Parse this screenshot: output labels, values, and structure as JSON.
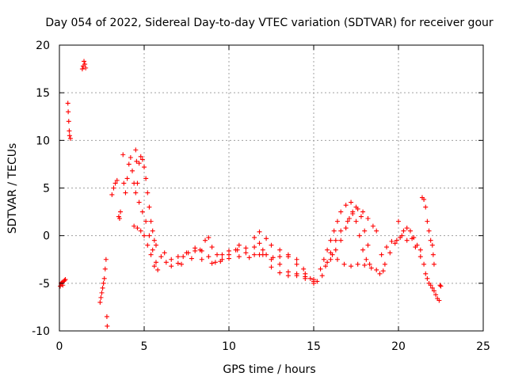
{
  "chart_data": {
    "type": "scatter",
    "title": "Day 054 of 2022, Sidereal Day-to-day VTEC variation (SDTVAR) for receiver gour",
    "xlabel": "GPS time / hours",
    "ylabel": "SDTVAR / TECUs",
    "xlim": [
      0,
      25
    ],
    "ylim": [
      -10,
      20
    ],
    "xticks": [
      "0",
      "5",
      "10",
      "15",
      "20",
      "25"
    ],
    "yticks": [
      "-10",
      "-5",
      "0",
      "5",
      "10",
      "15",
      "20"
    ],
    "grid": true,
    "marker": "plus",
    "color": "#ff0000",
    "series": [
      {
        "name": "SDTVAR",
        "points": [
          [
            0.05,
            -5.3
          ],
          [
            0.1,
            -5.0
          ],
          [
            0.15,
            -4.9
          ],
          [
            0.2,
            -5.2
          ],
          [
            0.25,
            -4.8
          ],
          [
            0.3,
            -4.7
          ],
          [
            0.35,
            -4.6
          ],
          [
            0.5,
            13.9
          ],
          [
            0.52,
            13.0
          ],
          [
            0.55,
            12.0
          ],
          [
            0.58,
            11.0
          ],
          [
            0.6,
            10.5
          ],
          [
            0.65,
            10.2
          ],
          [
            1.35,
            17.5
          ],
          [
            1.4,
            17.8
          ],
          [
            1.45,
            18.3
          ],
          [
            1.5,
            18.0
          ],
          [
            1.55,
            17.6
          ],
          [
            2.4,
            -7.0
          ],
          [
            2.45,
            -6.5
          ],
          [
            2.5,
            -6.0
          ],
          [
            2.55,
            -5.5
          ],
          [
            2.6,
            -5.0
          ],
          [
            2.65,
            -4.5
          ],
          [
            2.7,
            -3.5
          ],
          [
            2.75,
            -2.5
          ],
          [
            2.8,
            -8.5
          ],
          [
            2.82,
            -9.5
          ],
          [
            3.1,
            4.3
          ],
          [
            3.2,
            5.0
          ],
          [
            3.3,
            5.5
          ],
          [
            3.4,
            5.8
          ],
          [
            3.5,
            2.0
          ],
          [
            3.55,
            1.8
          ],
          [
            3.6,
            2.5
          ],
          [
            3.75,
            8.5
          ],
          [
            3.8,
            5.5
          ],
          [
            3.9,
            4.5
          ],
          [
            4.0,
            6.0
          ],
          [
            4.1,
            7.5
          ],
          [
            4.2,
            8.2
          ],
          [
            4.3,
            6.8
          ],
          [
            4.4,
            5.5
          ],
          [
            4.5,
            9.0
          ],
          [
            4.55,
            7.8
          ],
          [
            4.6,
            5.5
          ],
          [
            4.7,
            7.6
          ],
          [
            4.8,
            8.3
          ],
          [
            4.9,
            8.0
          ],
          [
            5.0,
            7.2
          ],
          [
            5.1,
            6.0
          ],
          [
            5.2,
            4.5
          ],
          [
            5.3,
            3.0
          ],
          [
            5.4,
            1.5
          ],
          [
            5.5,
            0.5
          ],
          [
            5.6,
            -0.5
          ],
          [
            5.7,
            -1.0
          ],
          [
            4.5,
            4.5
          ],
          [
            4.7,
            3.5
          ],
          [
            4.9,
            2.5
          ],
          [
            5.1,
            1.5
          ],
          [
            5.3,
            0.0
          ],
          [
            5.5,
            -1.5
          ],
          [
            5.7,
            -2.8
          ],
          [
            5.8,
            -3.6
          ],
          [
            4.4,
            1.0
          ],
          [
            4.6,
            0.8
          ],
          [
            4.8,
            0.5
          ],
          [
            5.0,
            0.0
          ],
          [
            5.2,
            -1.0
          ],
          [
            5.4,
            -2.0
          ],
          [
            5.6,
            -3.2
          ],
          [
            6.0,
            -2.2
          ],
          [
            6.3,
            -2.8
          ],
          [
            6.6,
            -3.2
          ],
          [
            7.0,
            -2.9
          ],
          [
            7.3,
            -2.2
          ],
          [
            7.6,
            -1.8
          ],
          [
            8.0,
            -1.6
          ],
          [
            8.3,
            -1.5
          ],
          [
            8.6,
            -0.5
          ],
          [
            8.8,
            -0.2
          ],
          [
            9.0,
            -1.2
          ],
          [
            9.3,
            -2.0
          ],
          [
            9.6,
            -2.0
          ],
          [
            10.0,
            -1.6
          ],
          [
            10.4,
            -1.5
          ],
          [
            6.2,
            -1.8
          ],
          [
            6.6,
            -2.5
          ],
          [
            7.0,
            -2.2
          ],
          [
            7.5,
            -1.8
          ],
          [
            8.0,
            -1.3
          ],
          [
            8.4,
            -1.6
          ],
          [
            8.8,
            -2.2
          ],
          [
            9.2,
            -2.8
          ],
          [
            9.6,
            -2.5
          ],
          [
            10.0,
            -2.0
          ],
          [
            10.5,
            -1.5
          ],
          [
            11.0,
            -1.8
          ],
          [
            7.2,
            -3.0
          ],
          [
            7.8,
            -2.4
          ],
          [
            8.4,
            -2.5
          ],
          [
            9.0,
            -2.9
          ],
          [
            9.5,
            -2.7
          ],
          [
            10.0,
            -2.4
          ],
          [
            10.6,
            -2.2
          ],
          [
            11.2,
            -2.3
          ],
          [
            11.8,
            -2.0
          ],
          [
            10.6,
            -1.0
          ],
          [
            11.0,
            -1.3
          ],
          [
            11.5,
            -1.2
          ],
          [
            11.8,
            -0.8
          ],
          [
            12.2,
            -2.0
          ],
          [
            12.6,
            -2.3
          ],
          [
            13.0,
            -2.2
          ],
          [
            13.5,
            -2.0
          ],
          [
            14.0,
            -2.5
          ],
          [
            14.4,
            -3.5
          ],
          [
            14.8,
            -4.5
          ],
          [
            15.2,
            -4.8
          ],
          [
            11.5,
            -0.2
          ],
          [
            11.8,
            0.4
          ],
          [
            12.2,
            -0.3
          ],
          [
            12.5,
            -1.0
          ],
          [
            13.0,
            -1.5
          ],
          [
            13.5,
            -2.2
          ],
          [
            14.0,
            -3.0
          ],
          [
            14.5,
            -4.0
          ],
          [
            15.0,
            -4.6
          ],
          [
            11.5,
            -2.0
          ],
          [
            12.0,
            -1.5
          ],
          [
            12.5,
            -2.5
          ],
          [
            13.0,
            -3.0
          ],
          [
            13.5,
            -3.8
          ],
          [
            14.0,
            -4.2
          ],
          [
            14.5,
            -4.5
          ],
          [
            15.0,
            -4.8
          ],
          [
            12.0,
            -2.0
          ],
          [
            12.5,
            -3.3
          ],
          [
            13.0,
            -3.9
          ],
          [
            13.5,
            -4.2
          ],
          [
            14.0,
            -4.0
          ],
          [
            14.5,
            -4.3
          ],
          [
            15.0,
            -5.0
          ],
          [
            15.4,
            -3.5
          ],
          [
            15.6,
            -2.5
          ],
          [
            15.8,
            -1.5
          ],
          [
            16.0,
            -0.5
          ],
          [
            16.2,
            0.5
          ],
          [
            16.4,
            1.5
          ],
          [
            16.6,
            2.5
          ],
          [
            16.9,
            3.2
          ],
          [
            17.2,
            3.5
          ],
          [
            17.5,
            3.0
          ],
          [
            17.8,
            2.0
          ],
          [
            18.0,
            0.5
          ],
          [
            18.2,
            -1.0
          ],
          [
            15.5,
            -4.2
          ],
          [
            15.8,
            -2.8
          ],
          [
            16.0,
            -1.8
          ],
          [
            16.3,
            -0.5
          ],
          [
            16.6,
            0.5
          ],
          [
            17.0,
            1.5
          ],
          [
            17.3,
            2.3
          ],
          [
            17.6,
            2.8
          ],
          [
            17.9,
            2.5
          ],
          [
            18.2,
            1.8
          ],
          [
            18.5,
            1.0
          ],
          [
            18.7,
            0.5
          ],
          [
            15.7,
            -3.2
          ],
          [
            16.0,
            -2.5
          ],
          [
            16.3,
            -1.5
          ],
          [
            16.6,
            -0.5
          ],
          [
            16.9,
            0.8
          ],
          [
            17.1,
            1.8
          ],
          [
            17.3,
            2.5
          ],
          [
            17.5,
            1.5
          ],
          [
            17.7,
            0.0
          ],
          [
            17.9,
            -1.5
          ],
          [
            18.1,
            -2.5
          ],
          [
            18.3,
            -3.0
          ],
          [
            16.1,
            -2.0
          ],
          [
            16.4,
            -2.5
          ],
          [
            16.8,
            -3.0
          ],
          [
            17.2,
            -3.2
          ],
          [
            17.6,
            -3.0
          ],
          [
            18.0,
            -3.1
          ],
          [
            18.4,
            -3.4
          ],
          [
            18.7,
            -3.6
          ],
          [
            18.9,
            -4.0
          ],
          [
            19.1,
            -3.7
          ],
          [
            19.0,
            -2.0
          ],
          [
            19.3,
            -1.2
          ],
          [
            19.6,
            -0.6
          ],
          [
            19.9,
            -0.5
          ],
          [
            20.1,
            -0.2
          ],
          [
            20.3,
            0.5
          ],
          [
            20.5,
            0.8
          ],
          [
            20.7,
            0.5
          ],
          [
            20.9,
            -0.2
          ],
          [
            21.1,
            -1.0
          ],
          [
            21.3,
            -1.5
          ],
          [
            19.2,
            -3.0
          ],
          [
            19.5,
            -1.8
          ],
          [
            19.8,
            -0.8
          ],
          [
            20.0,
            1.5
          ],
          [
            20.2,
            0.0
          ],
          [
            20.5,
            -0.5
          ],
          [
            20.8,
            -0.3
          ],
          [
            21.0,
            -1.2
          ],
          [
            21.3,
            -2.2
          ],
          [
            21.4,
            4.0
          ],
          [
            21.5,
            3.8
          ],
          [
            21.6,
            3.0
          ],
          [
            21.7,
            1.5
          ],
          [
            21.8,
            0.5
          ],
          [
            21.9,
            -0.5
          ],
          [
            22.0,
            -1.0
          ],
          [
            22.05,
            -2.0
          ],
          [
            22.1,
            -3.0
          ],
          [
            21.5,
            -3.0
          ],
          [
            21.6,
            -4.0
          ],
          [
            21.7,
            -4.5
          ],
          [
            21.8,
            -5.0
          ],
          [
            21.9,
            -5.2
          ],
          [
            22.0,
            -5.5
          ],
          [
            22.1,
            -5.8
          ],
          [
            22.2,
            -6.2
          ],
          [
            22.3,
            -6.6
          ],
          [
            22.4,
            -6.8
          ],
          [
            22.45,
            -5.2
          ],
          [
            22.5,
            -5.3
          ]
        ]
      }
    ]
  }
}
